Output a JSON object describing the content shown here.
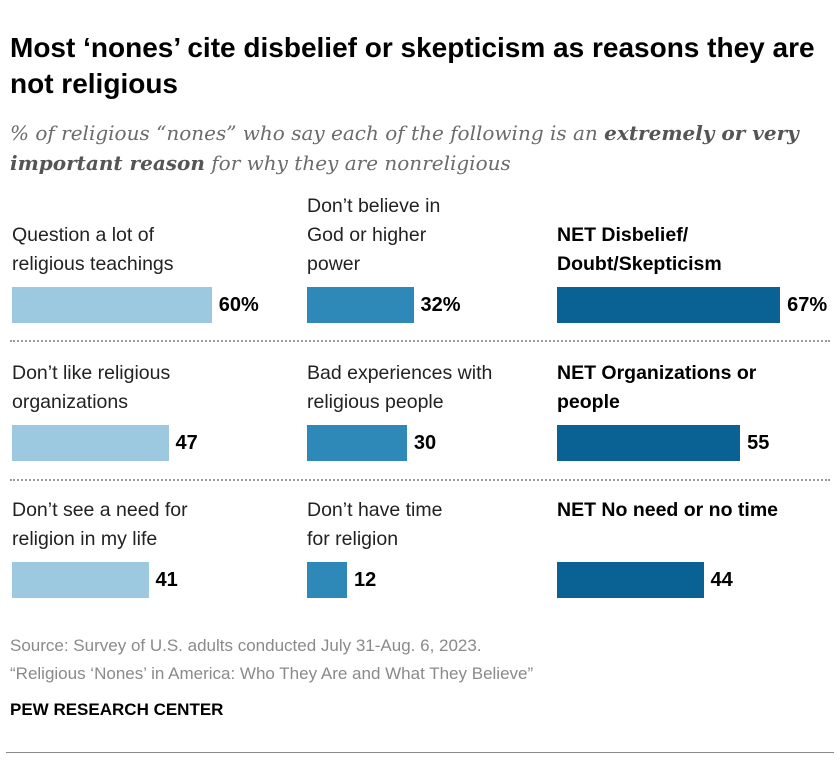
{
  "title": "Most ‘nones’ cite disbelief or skepticism as reasons they are not religious",
  "subtitle": {
    "pre": "% of religious “nones” who say each of the following is an ",
    "bold": "extremely or very important reason",
    "post": " for why they are nonreligious"
  },
  "chart_data": {
    "type": "bar",
    "orientation": "horizontal",
    "unit": "%",
    "colors": {
      "column1": "#9cc8e0",
      "column2": "#2e89b8",
      "column3": "#0a6194"
    },
    "items": [
      {
        "label": "Question a lot of religious teachings",
        "value": 60,
        "value_label": "60%",
        "column": 1,
        "row": 1,
        "net": false
      },
      {
        "label": "Don’t believe in God or higher power",
        "value": 32,
        "value_label": "32%",
        "column": 2,
        "row": 1,
        "net": false
      },
      {
        "label": "NET Disbelief/ Doubt/Skepticism",
        "value": 67,
        "value_label": "67%",
        "column": 3,
        "row": 1,
        "net": true
      },
      {
        "label": "Don’t like religious organizations",
        "value": 47,
        "value_label": "47",
        "column": 1,
        "row": 2,
        "net": false
      },
      {
        "label": "Bad experiences with religious people",
        "value": 30,
        "value_label": "30",
        "column": 2,
        "row": 2,
        "net": false
      },
      {
        "label": "NET Organizations or people",
        "value": 55,
        "value_label": "55",
        "column": 3,
        "row": 2,
        "net": true
      },
      {
        "label": "Don’t see a need for religion in my life",
        "value": 41,
        "value_label": "41",
        "column": 1,
        "row": 3,
        "net": false
      },
      {
        "label": "Don’t have time for religion",
        "value": 12,
        "value_label": "12",
        "column": 2,
        "row": 3,
        "net": false
      },
      {
        "label": "NET No need or no time",
        "value": 44,
        "value_label": "44",
        "column": 3,
        "row": 3,
        "net": true
      }
    ],
    "xlim": [
      0,
      100
    ]
  },
  "source": {
    "line1": "Source: Survey of U.S. adults conducted July 31-Aug. 6, 2023.",
    "line2": "“Religious ‘Nones’ in America: Who They Are and What They Believe”"
  },
  "brand": "PEW RESEARCH CENTER"
}
